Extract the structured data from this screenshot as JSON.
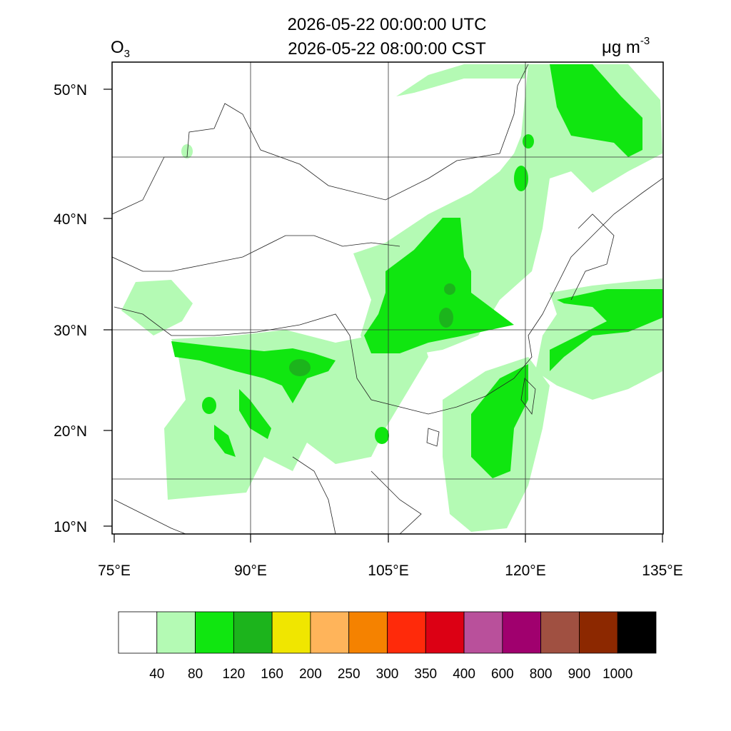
{
  "title": [
    "2026-05-22 00:00:00 UTC",
    "2026-05-22 08:00:00 CST"
  ],
  "variable": {
    "base": "O",
    "subscript": "3"
  },
  "units": {
    "base": "μg m",
    "superscript": "-3"
  },
  "lat_labels": [
    "50°N",
    "40°N",
    "30°N",
    "20°N",
    "10°N"
  ],
  "lon_labels": [
    "75°E",
    "90°E",
    "105°E",
    "120°E",
    "135°E"
  ],
  "colorbar": {
    "colors": [
      "#ffffff",
      "#b4fab4",
      "#10e610",
      "#1cb41c",
      "#f0e600",
      "#ffb45a",
      "#f58200",
      "#ff2a0a",
      "#dc0014",
      "#b9509b",
      "#a0006e",
      "#a05041",
      "#8c2800",
      "#000000"
    ],
    "levels": [
      40,
      80,
      120,
      160,
      200,
      250,
      300,
      350,
      400,
      600,
      800,
      900,
      1000
    ]
  }
}
